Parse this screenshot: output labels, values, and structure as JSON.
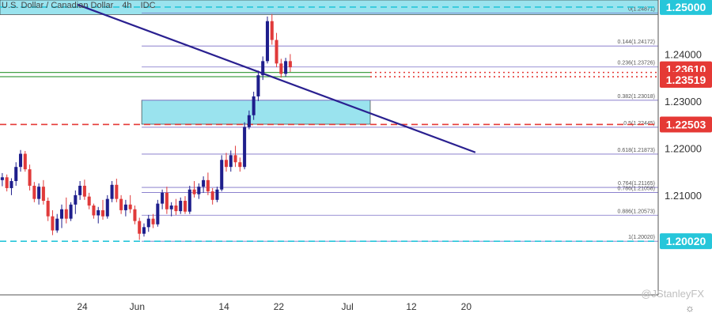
{
  "header": {
    "symbol": "U.S. Dollar / Canadian Dollar",
    "interval": "4h",
    "source": "IDC"
  },
  "watermark": "@JStanleyFX",
  "settings_icon": "gear-icon",
  "colors": {
    "bull": "#1e1e8c",
    "bear": "#e03a3a",
    "fib": "#7b6fc7",
    "trend": "#2a2090",
    "zone": "#8fe0ec",
    "red_level": "#e53935",
    "cyan_level": "#26c6da",
    "green_level": "#43a047"
  },
  "chart_data": {
    "type": "candlestick",
    "title": "U.S. Dollar / Canadian Dollar",
    "xlabel": "",
    "ylabel": "",
    "ylim": [
      1.1888,
      1.2515
    ],
    "xlim": [
      0,
      144
    ],
    "x_ticks": [
      {
        "label": "24",
        "x": 18
      },
      {
        "label": "Jun",
        "x": 30
      },
      {
        "label": "14",
        "x": 49
      },
      {
        "label": "22",
        "x": 61
      },
      {
        "label": "Jul",
        "x": 76
      },
      {
        "label": "12",
        "x": 90
      },
      {
        "label": "20",
        "x": 102
      }
    ],
    "y_ticks": [
      "1.24000",
      "1.23000",
      "1.22000",
      "1.21000"
    ],
    "y_tick_values": [
      1.24,
      1.23,
      1.22,
      1.21
    ],
    "price_labels": [
      {
        "value": 1.25,
        "text": "1.25000",
        "style": "cyan"
      },
      {
        "value": 1.2361,
        "text": "1.23610",
        "style": "red"
      },
      {
        "value": 1.23519,
        "text": "1.23519",
        "style": "red"
      },
      {
        "value": 1.22503,
        "text": "1.22503",
        "style": "red"
      },
      {
        "value": 1.2002,
        "text": "1.20020",
        "style": "cyan"
      }
    ],
    "fib_levels": [
      {
        "ratio": "0",
        "value": 1.24871
      },
      {
        "ratio": "0.144",
        "value": 1.24172
      },
      {
        "ratio": "0.236",
        "value": 1.23726
      },
      {
        "ratio": "0.382",
        "value": 1.23018
      },
      {
        "ratio": "0.5",
        "value": 1.22445
      },
      {
        "ratio": "0.618",
        "value": 1.21873
      },
      {
        "ratio": "0.764",
        "value": 1.21165
      },
      {
        "ratio": "0.786",
        "value": 1.21058
      },
      {
        "ratio": "0.886",
        "value": 1.20573
      },
      {
        "ratio": "1",
        "value": 1.2002
      }
    ],
    "zones": [
      {
        "from": 1.2484,
        "to": 1.2515,
        "x_start": 0,
        "x_end": 144
      },
      {
        "from": 1.2251,
        "to": 1.2302,
        "x_start": 31,
        "x_end": 81
      }
    ],
    "levels": [
      {
        "value": 1.25,
        "style": "dash",
        "color": "cyan",
        "x_start": 0
      },
      {
        "value": 1.2361,
        "style": "dot",
        "color": "red",
        "x_start": 81
      },
      {
        "value": 1.23519,
        "style": "dot",
        "color": "red",
        "x_start": 81
      },
      {
        "value": 1.2361,
        "style": "solid",
        "color": "green",
        "x_start": 0,
        "x_end": 81
      },
      {
        "value": 1.23519,
        "style": "solid",
        "color": "green",
        "x_start": 0,
        "x_end": 81
      },
      {
        "value": 1.22503,
        "style": "dash",
        "color": "red",
        "x_start": 0
      },
      {
        "value": 1.2002,
        "style": "dash",
        "color": "cyan",
        "x_start": 0
      }
    ],
    "trendline": {
      "x1": 17,
      "y1": 1.2505,
      "x2": 104,
      "y2": 1.2191
    },
    "candles": [
      [
        1.2132,
        1.2147,
        1.2119,
        1.2138
      ],
      [
        1.2138,
        1.2144,
        1.2108,
        1.2115
      ],
      [
        1.2115,
        1.2136,
        1.21,
        1.213
      ],
      [
        1.213,
        1.217,
        1.212,
        1.216
      ],
      [
        1.216,
        1.2196,
        1.215,
        1.2188
      ],
      [
        1.2188,
        1.2194,
        1.215,
        1.2155
      ],
      [
        1.2155,
        1.2165,
        1.211,
        1.212
      ],
      [
        1.212,
        1.2128,
        1.2085,
        1.2092
      ],
      [
        1.2092,
        1.2125,
        1.208,
        1.2118
      ],
      [
        1.2118,
        1.2132,
        1.208,
        1.2088
      ],
      [
        1.2088,
        1.2095,
        1.2045,
        1.2055
      ],
      [
        1.2055,
        1.2068,
        1.2015,
        1.2025
      ],
      [
        1.2025,
        1.206,
        1.202,
        1.205
      ],
      [
        1.205,
        1.208,
        1.203,
        1.207
      ],
      [
        1.207,
        1.2095,
        1.204,
        1.205
      ],
      [
        1.205,
        1.2085,
        1.2045,
        1.208
      ],
      [
        1.208,
        1.211,
        1.206,
        1.21
      ],
      [
        1.21,
        1.213,
        1.209,
        1.212
      ],
      [
        1.212,
        1.2133,
        1.209,
        1.2097
      ],
      [
        1.2097,
        1.2105,
        1.207,
        1.2078
      ],
      [
        1.2078,
        1.2082,
        1.205,
        1.2057
      ],
      [
        1.2057,
        1.2075,
        1.204,
        1.2068
      ],
      [
        1.2068,
        1.209,
        1.2048,
        1.2055
      ],
      [
        1.2055,
        1.21,
        1.205,
        1.2092
      ],
      [
        1.2092,
        1.213,
        1.2085,
        1.2122
      ],
      [
        1.2122,
        1.2135,
        1.2085,
        1.2092
      ],
      [
        1.2092,
        1.21,
        1.206,
        1.2068
      ],
      [
        1.2068,
        1.209,
        1.2055,
        1.208
      ],
      [
        1.208,
        1.21,
        1.2062,
        1.207
      ],
      [
        1.207,
        1.2078,
        1.2038,
        1.2045
      ],
      [
        1.2045,
        1.2052,
        1.2005,
        1.2018
      ],
      [
        1.2018,
        1.204,
        1.2012,
        1.2032
      ],
      [
        1.2032,
        1.2058,
        1.2022,
        1.205
      ],
      [
        1.205,
        1.206,
        1.203,
        1.2038
      ],
      [
        1.2038,
        1.209,
        1.2033,
        1.2082
      ],
      [
        1.2082,
        1.2112,
        1.207,
        1.2105
      ],
      [
        1.2105,
        1.2118,
        1.206,
        1.207
      ],
      [
        1.207,
        1.2085,
        1.2055,
        1.2078
      ],
      [
        1.2078,
        1.2092,
        1.2058,
        1.2066
      ],
      [
        1.2066,
        1.2095,
        1.206,
        1.2088
      ],
      [
        1.2088,
        1.2098,
        1.206,
        1.2065
      ],
      [
        1.2065,
        1.212,
        1.206,
        1.2112
      ],
      [
        1.2112,
        1.213,
        1.2095,
        1.2102
      ],
      [
        1.2102,
        1.2125,
        1.2092,
        1.2118
      ],
      [
        1.2118,
        1.214,
        1.2105,
        1.2132
      ],
      [
        1.2132,
        1.2148,
        1.21,
        1.2108
      ],
      [
        1.2108,
        1.2115,
        1.208,
        1.209
      ],
      [
        1.209,
        1.2118,
        1.2085,
        1.2112
      ],
      [
        1.2112,
        1.2185,
        1.2108,
        1.2175
      ],
      [
        1.2175,
        1.219,
        1.215,
        1.216
      ],
      [
        1.216,
        1.2195,
        1.215,
        1.2185
      ],
      [
        1.2185,
        1.2205,
        1.216,
        1.217
      ],
      [
        1.217,
        1.218,
        1.215,
        1.216
      ],
      [
        1.216,
        1.2255,
        1.2155,
        1.2245
      ],
      [
        1.2245,
        1.228,
        1.224,
        1.227
      ],
      [
        1.227,
        1.232,
        1.226,
        1.231
      ],
      [
        1.231,
        1.2365,
        1.23,
        1.2355
      ],
      [
        1.2355,
        1.2395,
        1.2345,
        1.2385
      ],
      [
        1.2385,
        1.248,
        1.238,
        1.247
      ],
      [
        1.247,
        1.2485,
        1.242,
        1.243
      ],
      [
        1.243,
        1.2445,
        1.2372,
        1.238
      ],
      [
        1.238,
        1.239,
        1.235,
        1.2358
      ],
      [
        1.2358,
        1.2392,
        1.2352,
        1.2385
      ],
      [
        1.2385,
        1.24,
        1.2362,
        1.2372
      ]
    ]
  }
}
